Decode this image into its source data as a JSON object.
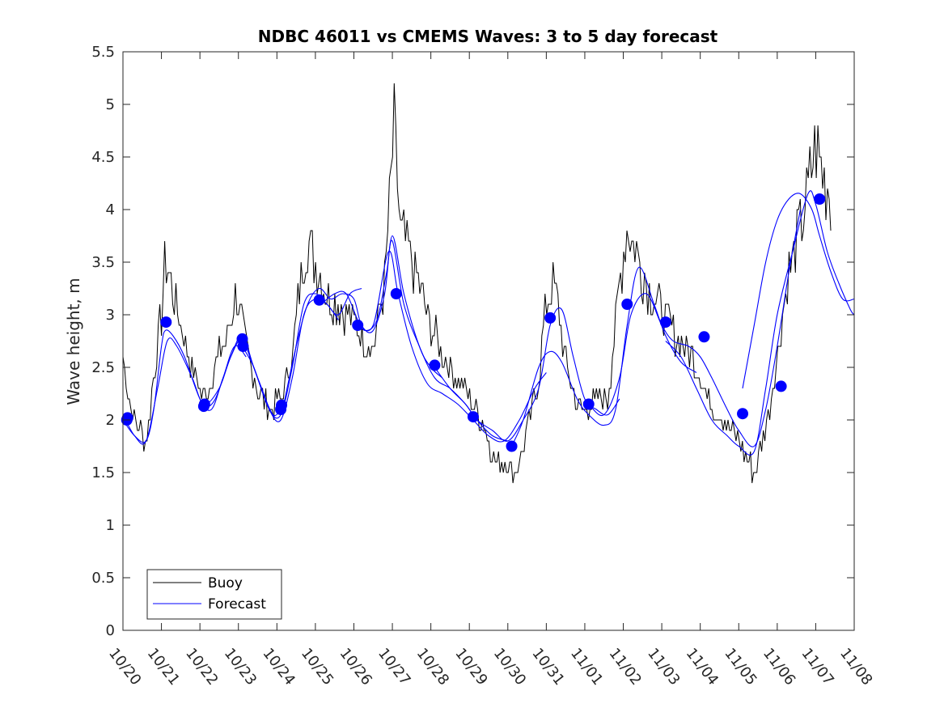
{
  "chart_data": {
    "type": "line",
    "title": "NDBC 46011 vs CMEMS Waves: 3 to 5 day forecast",
    "xlabel": "",
    "ylabel": "Wave height, m",
    "xlim": [
      0,
      19
    ],
    "ylim": [
      0,
      5.5
    ],
    "grid": false,
    "legend_location": "bottom-left",
    "x_tick_labels": [
      "10/20",
      "10/21",
      "10/22",
      "10/23",
      "10/24",
      "10/25",
      "10/26",
      "10/27",
      "10/28",
      "10/29",
      "10/30",
      "10/31",
      "11/01",
      "11/02",
      "11/03",
      "11/04",
      "11/05",
      "11/06",
      "11/07",
      "11/08"
    ],
    "y_tick_labels": [
      "0",
      "0.5",
      "1",
      "1.5",
      "2",
      "2.5",
      "3",
      "3.5",
      "4",
      "4.5",
      "5",
      "5.5"
    ],
    "colors": {
      "buoy": "#000000",
      "forecast": "#0000ff",
      "axis": "#262626"
    },
    "legend": [
      {
        "name": "Buoy",
        "color": "#000000"
      },
      {
        "name": "Forecast",
        "color": "#0000ff"
      }
    ],
    "buoy_anchor_points": {
      "note": "days since 10/20, wave height m; dense noisy series estimated from figure",
      "x": [
        0,
        0.15,
        0.3,
        0.45,
        0.6,
        0.8,
        1.0,
        1.1,
        1.25,
        1.5,
        1.8,
        2.1,
        2.4,
        2.7,
        2.95,
        3.2,
        3.5,
        3.8,
        4.1,
        4.4,
        4.6,
        4.8,
        5.0,
        5.3,
        5.6,
        5.9,
        6.2,
        6.5,
        6.8,
        6.95,
        7.05,
        7.2,
        7.5,
        7.9,
        8.3,
        8.7,
        9.0,
        9.3,
        9.7,
        10.0,
        10.2,
        10.5,
        10.8,
        11.0,
        11.2,
        11.5,
        11.8,
        12.0,
        12.3,
        12.6,
        12.9,
        13.1,
        13.35,
        13.6,
        14.0,
        14.4,
        14.8,
        15.2,
        15.6,
        16.0,
        16.4,
        16.8,
        17.0,
        17.3,
        17.7,
        18.0,
        18.2,
        18.4
      ],
      "y": [
        2.6,
        2.2,
        2.0,
        1.9,
        1.8,
        2.4,
        3.0,
        3.5,
        3.3,
        2.9,
        2.5,
        2.2,
        2.5,
        2.8,
        3.2,
        2.7,
        2.3,
        2.1,
        2.2,
        2.6,
        3.3,
        3.7,
        3.5,
        3.2,
        3.1,
        3.0,
        2.8,
        2.7,
        3.3,
        4.2,
        4.8,
        3.8,
        3.5,
        3.0,
        2.6,
        2.4,
        2.2,
        2.0,
        1.6,
        1.6,
        1.5,
        1.9,
        2.4,
        3.1,
        3.3,
        2.6,
        2.1,
        2.1,
        2.2,
        2.2,
        3.3,
        3.8,
        3.6,
        3.3,
        3.0,
        2.8,
        2.6,
        2.2,
        2.0,
        1.8,
        1.5,
        2.1,
        2.6,
        3.4,
        4.0,
        4.6,
        4.3,
        4.1
      ]
    },
    "forecast_segments": [
      {
        "x": [
          0,
          0.3,
          0.6,
          0.8,
          1.0,
          1.1,
          1.3,
          1.6,
          2.0,
          2.3,
          2.6,
          2.9,
          3.2
        ],
        "y": [
          2.0,
          1.85,
          1.8,
          2.1,
          2.7,
          2.85,
          2.8,
          2.6,
          2.2,
          2.1,
          2.4,
          2.7,
          2.6
        ]
      },
      {
        "x": [
          0,
          0.3,
          0.6,
          0.9,
          1.15,
          1.4,
          1.8,
          2.1,
          2.5,
          2.8,
          3.1,
          3.5,
          3.9,
          4.15
        ],
        "y": [
          2.05,
          1.85,
          1.8,
          2.3,
          2.75,
          2.7,
          2.4,
          2.15,
          2.3,
          2.6,
          2.75,
          2.4,
          2.05,
          2.15
        ]
      },
      {
        "x": [
          2.1,
          2.4,
          2.8,
          3.1,
          3.4,
          3.8,
          4.1,
          4.4,
          4.7,
          5.0,
          5.3,
          5.6
        ],
        "y": [
          2.1,
          2.2,
          2.6,
          2.8,
          2.5,
          2.1,
          2.0,
          2.4,
          3.0,
          3.15,
          3.1,
          2.95
        ]
      },
      {
        "x": [
          3.1,
          3.4,
          3.8,
          4.1,
          4.4,
          4.7,
          5.0,
          5.3,
          5.6,
          5.9,
          6.2
        ],
        "y": [
          2.7,
          2.5,
          2.1,
          2.05,
          2.5,
          3.1,
          3.2,
          3.1,
          3.0,
          3.2,
          3.25
        ]
      },
      {
        "x": [
          4.15,
          4.5,
          4.8,
          5.1,
          5.4,
          5.7,
          6.0,
          6.2,
          6.5,
          6.8,
          7.0,
          7.3,
          7.7,
          8.0,
          8.3
        ],
        "y": [
          2.1,
          2.7,
          3.1,
          3.25,
          3.15,
          3.2,
          3.15,
          2.9,
          2.85,
          3.2,
          3.75,
          3.2,
          2.7,
          2.5,
          2.4
        ]
      },
      {
        "x": [
          5.15,
          5.5,
          5.8,
          6.1,
          6.3,
          6.6,
          6.85,
          7.0,
          7.3,
          7.7,
          8.1,
          8.5,
          8.9,
          9.2,
          9.6,
          10.0
        ],
        "y": [
          3.1,
          3.2,
          3.2,
          2.95,
          2.85,
          2.95,
          3.4,
          3.7,
          3.1,
          2.7,
          2.4,
          2.3,
          2.15,
          2.0,
          1.85,
          1.8
        ]
      },
      {
        "x": [
          6.1,
          6.5,
          6.9,
          7.15,
          7.5,
          7.9,
          8.3,
          8.7,
          9.1,
          9.5,
          9.9,
          10.3,
          10.7,
          11.0
        ],
        "y": [
          2.9,
          2.9,
          3.6,
          3.2,
          2.7,
          2.35,
          2.25,
          2.15,
          2.0,
          1.85,
          1.8,
          2.0,
          2.3,
          2.45
        ]
      },
      {
        "x": [
          8.1,
          8.5,
          8.9,
          9.2,
          9.6,
          10.0,
          10.4,
          10.8,
          11.1,
          11.4,
          11.7,
          12.0,
          12.3,
          12.6,
          12.9
        ],
        "y": [
          2.5,
          2.3,
          2.15,
          2.0,
          1.9,
          1.8,
          2.0,
          2.3,
          2.9,
          3.05,
          2.6,
          2.2,
          2.1,
          2.05,
          2.2
        ]
      },
      {
        "x": [
          10.1,
          10.4,
          10.8,
          11.1,
          11.4,
          11.8,
          12.1,
          12.5,
          12.8,
          13.1,
          13.4,
          13.8,
          14.1,
          14.5,
          14.9
        ],
        "y": [
          1.75,
          2.0,
          2.5,
          2.65,
          2.55,
          2.2,
          2.05,
          1.95,
          2.1,
          2.9,
          3.45,
          3.1,
          2.8,
          2.55,
          2.45
        ]
      },
      {
        "x": [
          12.1,
          12.5,
          12.9,
          13.2,
          13.6,
          14.0,
          14.3,
          14.7,
          15.0,
          15.3,
          15.7,
          16.0,
          16.4,
          16.7,
          17.0,
          17.3,
          17.6
        ],
        "y": [
          2.15,
          2.05,
          2.4,
          3.0,
          3.2,
          2.9,
          2.75,
          2.7,
          2.6,
          2.4,
          2.1,
          1.9,
          1.75,
          2.1,
          2.7,
          3.4,
          4.0
        ]
      },
      {
        "x": [
          14.1,
          14.5,
          14.9,
          15.3,
          15.7,
          16.0,
          16.4,
          16.7,
          17.0,
          17.4,
          17.8,
          18.0,
          18.3,
          18.6,
          18.9,
          19.0
        ],
        "y": [
          2.75,
          2.6,
          2.3,
          2.0,
          1.85,
          1.75,
          1.7,
          2.3,
          3.0,
          3.6,
          4.15,
          4.05,
          3.6,
          3.3,
          3.05,
          3.0
        ]
      },
      {
        "x": [
          16.1,
          16.4,
          16.7,
          17.0,
          17.3,
          17.6,
          17.9,
          18.1,
          18.4,
          18.7,
          19.0
        ],
        "y": [
          2.3,
          2.9,
          3.5,
          3.9,
          4.1,
          4.15,
          4.0,
          3.75,
          3.4,
          3.15,
          3.15
        ]
      }
    ],
    "forecast_markers": {
      "x": [
        0.1,
        0.12,
        1.12,
        2.1,
        2.12,
        3.1,
        3.12,
        4.1,
        4.12,
        5.1,
        6.1,
        7.1,
        8.1,
        9.1,
        10.1,
        11.1,
        12.1,
        13.1,
        14.1,
        15.1,
        16.1,
        17.1,
        18.1
      ],
      "y": [
        2.0,
        2.02,
        2.93,
        2.13,
        2.15,
        2.77,
        2.7,
        2.1,
        2.14,
        3.14,
        2.9,
        3.2,
        2.52,
        2.03,
        1.75,
        2.97,
        2.15,
        3.1,
        2.93,
        2.79,
        2.06,
        2.32,
        4.1
      ]
    }
  }
}
